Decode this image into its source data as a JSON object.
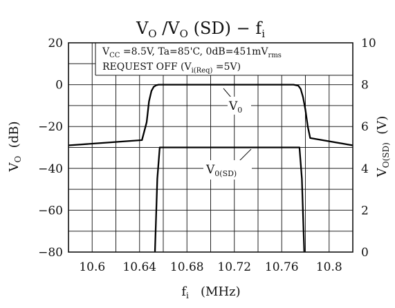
{
  "chart_data": {
    "type": "line",
    "title": {
      "base1": "V",
      "sub1": "O",
      "mid": " /V",
      "sub2": "O",
      "tail": " (SD)  −  f",
      "sub3": "i"
    },
    "annotation": {
      "line1": {
        "a": "V",
        "a_sub": "CC",
        "b": " =8.5V,  Ta=85'C,  0dB=451mV",
        "b_sub": "rms"
      },
      "line2": {
        "a": "REQUEST  OFF  (V",
        "a_sub": "i(Req)",
        "b": " =5V)"
      }
    },
    "xlabel": {
      "base": "f",
      "sub": "i",
      "unit": "(MHz)"
    },
    "ylabel_left": {
      "base": "V",
      "sub": "O",
      "unit": "(dB)"
    },
    "ylabel_right": {
      "base": "V",
      "sub": "O(SD)",
      "unit": "(V)"
    },
    "xlim": [
      10.58,
      10.82
    ],
    "ylim_left": [
      -80,
      20
    ],
    "ylim_right": [
      0,
      10
    ],
    "x_ticks": [
      10.6,
      10.64,
      10.68,
      10.72,
      10.76,
      10.8
    ],
    "x_tick_labels": [
      "10.6",
      "10.64",
      "10.68",
      "10.72",
      "10.76",
      "10.8"
    ],
    "y_left_ticks": [
      20,
      0,
      -20,
      -40,
      -60,
      -80
    ],
    "y_left_tick_labels": [
      "20",
      "0",
      "−20",
      "−40",
      "−60",
      "−80"
    ],
    "y_right_ticks": [
      10,
      8,
      6,
      4,
      2,
      0
    ],
    "y_right_tick_labels": [
      "10",
      "8",
      "6",
      "4",
      "2",
      "0"
    ],
    "grid": true,
    "series": [
      {
        "name": {
          "base": "V",
          "sub": "0"
        },
        "axis": "left",
        "x": [
          10.58,
          10.642,
          10.646,
          10.648,
          10.65,
          10.652,
          10.654,
          10.656,
          10.66,
          10.7,
          10.77,
          10.774,
          10.776,
          10.778,
          10.78,
          10.782,
          10.784,
          10.82
        ],
        "y": [
          -29,
          -26.5,
          -18,
          -8,
          -3,
          -1,
          -0.3,
          0,
          0,
          0,
          0,
          -0.5,
          -2,
          -6,
          -12,
          -20,
          -25.5,
          -29
        ]
      },
      {
        "name": {
          "base": "V",
          "sub": "0(SD)"
        },
        "axis": "right",
        "x": [
          10.653,
          10.655,
          10.657,
          10.775,
          10.777,
          10.779
        ],
        "y": [
          0,
          3.5,
          5,
          5,
          3.5,
          0
        ]
      }
    ]
  }
}
